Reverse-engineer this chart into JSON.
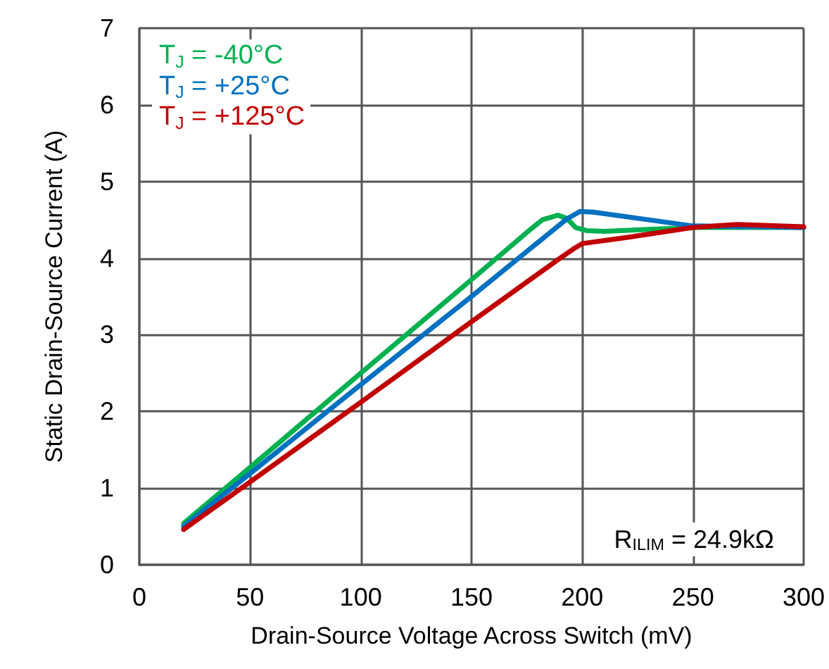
{
  "chart_data": {
    "type": "line",
    "xlabel": "Drain-Source Voltage Across Switch (mV)",
    "ylabel": "Static Drain-Source Current (A)",
    "xlim": [
      0,
      300
    ],
    "xticks": [
      0,
      50,
      100,
      150,
      200,
      250,
      300
    ],
    "ylim": [
      0,
      7
    ],
    "yticks": [
      0,
      1,
      2,
      3,
      4,
      5,
      6,
      7
    ],
    "grid": true,
    "legend": "top left",
    "marker": "none",
    "line_style": "solid",
    "annotations": [
      "R$_{ILIM}$ = 24.9kΩ"
    ],
    "series": [
      {
        "name": "T$_{J}$ = -40°C",
        "color": "#00b050",
        "x": [
          20,
          50,
          100,
          150,
          176,
          182,
          189,
          193,
          197,
          202,
          210,
          250,
          300
        ],
        "values": [
          0.54,
          1.27,
          2.5,
          3.72,
          4.36,
          4.5,
          4.56,
          4.52,
          4.4,
          4.36,
          4.35,
          4.4,
          4.4
        ]
      },
      {
        "name": "T$_{J}$ = +25°C",
        "color": "#0070c0",
        "x": [
          20,
          50,
          100,
          150,
          193,
          199,
          205,
          230,
          250,
          300
        ],
        "values": [
          0.5,
          1.19,
          2.35,
          3.5,
          4.51,
          4.61,
          4.6,
          4.5,
          4.42,
          4.4
        ]
      },
      {
        "name": "T$_{J}$ = +125°C",
        "color": "#c00000",
        "x": [
          20,
          50,
          100,
          150,
          190,
          196,
          200,
          220,
          250,
          270,
          300
        ],
        "values": [
          0.46,
          1.08,
          2.12,
          3.17,
          4.0,
          4.12,
          4.19,
          4.27,
          4.4,
          4.44,
          4.41
        ]
      }
    ]
  }
}
